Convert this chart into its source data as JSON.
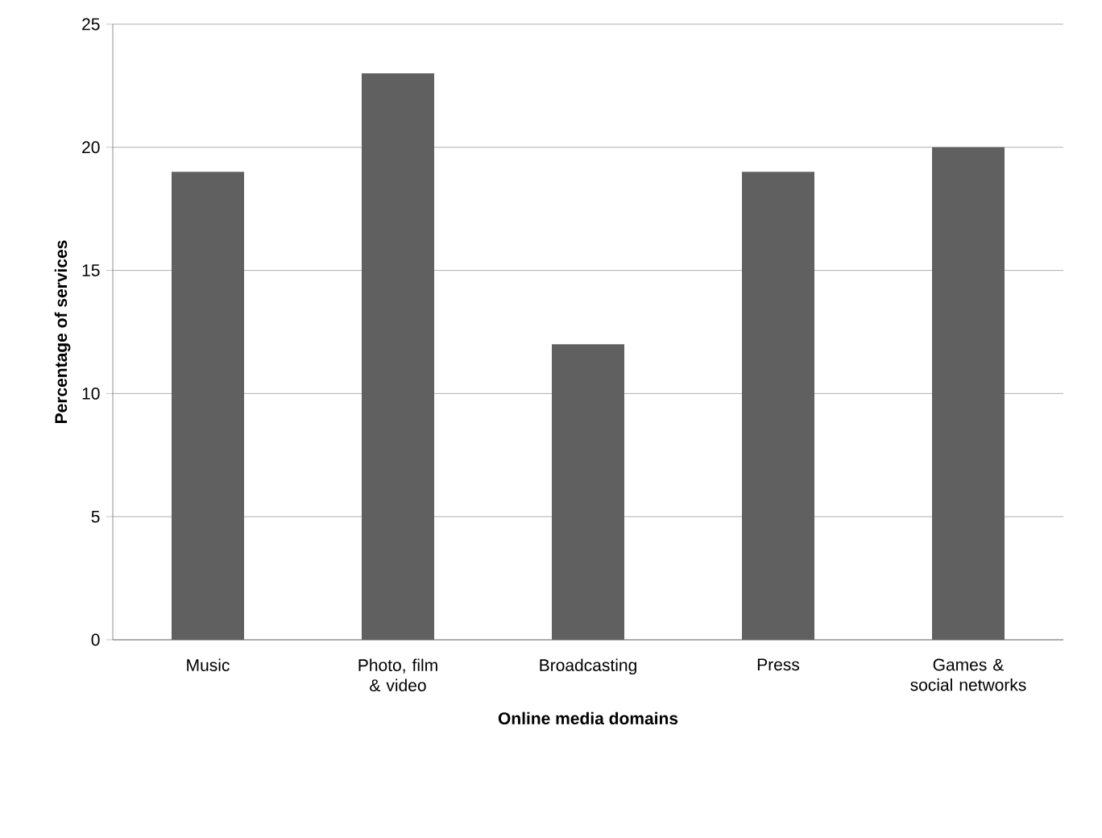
{
  "chart_data": {
    "type": "bar",
    "xlabel": "Online media domains",
    "ylabel": "Percentage of services",
    "categories": [
      "Music",
      "Photo, film & video",
      "Broadcasting",
      "Press",
      "Games & social networks"
    ],
    "values": [
      19,
      23,
      12,
      19,
      20
    ],
    "color": "#606060",
    "ylim": [
      0,
      25
    ],
    "yticks": [
      0,
      5,
      10,
      15,
      20,
      25
    ],
    "grid": "y"
  }
}
